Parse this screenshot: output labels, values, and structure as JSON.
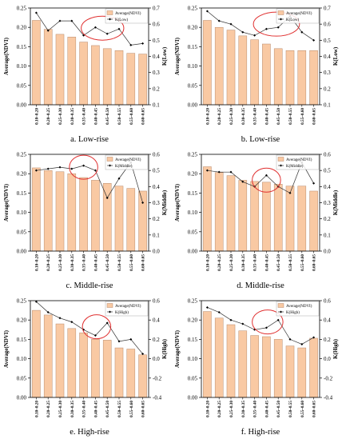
{
  "colors": {
    "bar_fill": "#f9c9a3",
    "bar_stroke": "#b8896a",
    "line": "#333333",
    "ellipse": "#e03030"
  },
  "chart_data": [
    {
      "id": "a",
      "type": "bar",
      "caption": "a. Low-rise",
      "ylabel": "Average(NDVI)",
      "y2label": "K(Low)",
      "categories": [
        "0.10~0.20",
        "0.20~0.25",
        "0.25~0.30",
        "0.30~0.35",
        "0.35~0.40",
        "0.40~0.45",
        "0.45~0.50",
        "0.50~0.55",
        "0.55~0.60",
        "0.60~0.65"
      ],
      "ylim": [
        0,
        0.25
      ],
      "yticks": [
        "0.00",
        "0.05",
        "0.10",
        "0.15",
        "0.20",
        "0.25"
      ],
      "yticks_values": [
        0,
        0.05,
        0.1,
        0.15,
        0.2,
        0.25
      ],
      "y2lim": [
        0.1,
        0.7
      ],
      "y2ticks": [
        "0.1",
        "0.2",
        "0.3",
        "0.4",
        "0.5",
        "0.6",
        "0.7"
      ],
      "y2ticks_values": [
        0.1,
        0.2,
        0.3,
        0.4,
        0.5,
        0.6,
        0.7
      ],
      "legend": [
        "Average(NDVI)",
        "K(Low)"
      ],
      "series": [
        {
          "name": "Average(NDVI)",
          "axis": "left",
          "values": [
            0.218,
            0.195,
            0.182,
            0.175,
            0.162,
            0.153,
            0.145,
            0.14,
            0.133,
            0.131
          ]
        },
        {
          "name": "K(Low)",
          "axis": "right",
          "values": [
            0.67,
            0.56,
            0.62,
            0.62,
            0.53,
            0.58,
            0.54,
            0.57,
            0.47,
            0.48
          ]
        }
      ],
      "highlight": {
        "x_from": 4.3,
        "x_to": 7.9,
        "y2_center": 0.575
      }
    },
    {
      "id": "b",
      "type": "bar",
      "caption": "b. Low-rise",
      "ylabel": "Average(NDVI)",
      "y2label": "K(Low)",
      "categories": [
        "0.10~0.20",
        "0.20~0.25",
        "0.25~0.30",
        "0.30~0.35",
        "0.35~0.40",
        "0.40~0.45",
        "0.45~0.50",
        "0.50~0.55",
        "0.55~0.60",
        "0.60~0.65"
      ],
      "ylim": [
        0,
        0.25
      ],
      "yticks": [
        "0.00",
        "0.05",
        "0.10",
        "0.15",
        "0.20",
        "0.25"
      ],
      "yticks_values": [
        0,
        0.05,
        0.1,
        0.15,
        0.2,
        0.25
      ],
      "y2lim": [
        0.1,
        0.7
      ],
      "y2ticks": [
        "0.1",
        "0.2",
        "0.3",
        "0.4",
        "0.5",
        "0.6",
        "0.7"
      ],
      "y2ticks_values": [
        0.1,
        0.2,
        0.3,
        0.4,
        0.5,
        0.6,
        0.7
      ],
      "legend": [
        "Average(NDVI)",
        "K(Low)"
      ],
      "series": [
        {
          "name": "Average(NDVI)",
          "axis": "left",
          "values": [
            0.218,
            0.2,
            0.193,
            0.178,
            0.168,
            0.157,
            0.145,
            0.14,
            0.14,
            0.14
          ]
        },
        {
          "name": "K(Low)",
          "axis": "right",
          "values": [
            0.68,
            0.62,
            0.6,
            0.55,
            0.53,
            0.57,
            0.58,
            0.65,
            0.55,
            0.5
          ]
        }
      ],
      "highlight": {
        "x_from": 4.4,
        "x_to": 8.3,
        "y2_center": 0.6
      }
    },
    {
      "id": "c",
      "type": "bar",
      "caption": "c. Middle-rise",
      "ylabel": "Average(NDVI)",
      "y2label": "K(Middle)",
      "categories": [
        "0.10~0.20",
        "0.20~0.25",
        "0.25~0.30",
        "0.30~0.35",
        "0.35~0.40",
        "0.40~0.45",
        "0.45~0.50",
        "0.50~0.55",
        "0.55~0.60",
        "0.60~0.65"
      ],
      "ylim": [
        0,
        0.25
      ],
      "yticks": [
        "0.00",
        "0.05",
        "0.10",
        "0.15",
        "0.20",
        "0.25"
      ],
      "yticks_values": [
        0,
        0.05,
        0.1,
        0.15,
        0.2,
        0.25
      ],
      "y2lim": [
        0,
        0.6
      ],
      "y2ticks": [
        "0.0",
        "0.1",
        "0.2",
        "0.3",
        "0.4",
        "0.5",
        "0.6"
      ],
      "y2ticks_values": [
        0,
        0.1,
        0.2,
        0.3,
        0.4,
        0.5,
        0.6
      ],
      "legend": [
        "Average(NDVI)",
        "K(Middle)"
      ],
      "series": [
        {
          "name": "Average(NDVI)",
          "axis": "left",
          "values": [
            0.215,
            0.208,
            0.205,
            0.2,
            0.19,
            0.183,
            0.175,
            0.168,
            0.162,
            0.155
          ]
        },
        {
          "name": "K(Middle)",
          "axis": "right",
          "values": [
            0.5,
            0.51,
            0.52,
            0.51,
            0.53,
            0.5,
            0.33,
            0.45,
            0.55,
            0.3
          ]
        }
      ],
      "highlight": {
        "x_from": 3.3,
        "x_to": 5.7,
        "y2_center": 0.52
      }
    },
    {
      "id": "d",
      "type": "bar",
      "caption": "d. Middle-rise",
      "ylabel": "Average(NDVI)",
      "y2label": "K(Middle)",
      "categories": [
        "0.10~0.20",
        "0.20~0.25",
        "0.25~0.30",
        "0.30~0.35",
        "0.35~0.40",
        "0.40~0.45",
        "0.45~0.50",
        "0.50~0.55",
        "0.55~0.60",
        "0.60~0.65"
      ],
      "ylim": [
        0,
        0.25
      ],
      "yticks": [
        "0.00",
        "0.05",
        "0.10",
        "0.15",
        "0.20",
        "0.25"
      ],
      "yticks_values": [
        0,
        0.05,
        0.1,
        0.15,
        0.2,
        0.25
      ],
      "y2lim": [
        0,
        0.6
      ],
      "y2ticks": [
        "0.0",
        "0.1",
        "0.2",
        "0.3",
        "0.4",
        "0.5",
        "0.6"
      ],
      "y2ticks_values": [
        0,
        0.1,
        0.2,
        0.3,
        0.4,
        0.5,
        0.6
      ],
      "legend": [
        "Average(NDVI)",
        "K(Middle)"
      ],
      "series": [
        {
          "name": "Average(NDVI)",
          "axis": "left",
          "values": [
            0.218,
            0.203,
            0.195,
            0.183,
            0.18,
            0.178,
            0.173,
            0.168,
            0.168,
            0.155
          ]
        },
        {
          "name": "K(Middle)",
          "axis": "right",
          "values": [
            0.5,
            0.49,
            0.49,
            0.43,
            0.4,
            0.47,
            0.4,
            0.36,
            0.55,
            0.42
          ]
        }
      ],
      "highlight": {
        "x_from": 4.3,
        "x_to": 6.7,
        "y2_center": 0.44
      }
    },
    {
      "id": "e",
      "type": "bar",
      "caption": "e. High-rise",
      "ylabel": "Average(NDVI)",
      "y2label": "K(High)",
      "categories": [
        "0.10~0.20",
        "0.20~0.25",
        "0.25~0.30",
        "0.30~0.35",
        "0.35~0.40",
        "0.40~0.45",
        "0.45~0.50",
        "0.50~0.55",
        "0.55~0.60",
        "0.60~0.65"
      ],
      "ylim": [
        0,
        0.25
      ],
      "yticks": [
        "0.00",
        "0.05",
        "0.10",
        "0.15",
        "0.20",
        "0.25"
      ],
      "yticks_values": [
        0,
        0.05,
        0.1,
        0.15,
        0.2,
        0.25
      ],
      "y2lim": [
        -0.4,
        0.6
      ],
      "y2ticks": [
        "-0.4",
        "-0.2",
        "0.0",
        "0.2",
        "0.4",
        "0.6"
      ],
      "y2ticks_values": [
        -0.4,
        -0.2,
        0,
        0.2,
        0.4,
        0.6
      ],
      "legend": [
        "Average(NDVI)",
        "K(High)"
      ],
      "series": [
        {
          "name": "Average(NDVI)",
          "axis": "left",
          "values": [
            0.225,
            0.213,
            0.19,
            0.178,
            0.167,
            0.15,
            0.148,
            0.128,
            0.125,
            0.11
          ]
        },
        {
          "name": "K(High)",
          "axis": "right",
          "values": [
            0.59,
            0.48,
            0.42,
            0.38,
            0.3,
            0.24,
            0.37,
            0.18,
            0.2,
            0.05
          ]
        }
      ],
      "highlight": {
        "x_from": 4.4,
        "x_to": 6.8,
        "y2_center": 0.33
      }
    },
    {
      "id": "f",
      "type": "bar",
      "caption": "f. High-rise",
      "ylabel": "Average(NDVI)",
      "y2label": "K(High)",
      "categories": [
        "0.10~0.20",
        "0.20~0.25",
        "0.25~0.30",
        "0.30~0.35",
        "0.35~0.40",
        "0.40~0.45",
        "0.45~0.50",
        "0.50~0.55",
        "0.55~0.60",
        "0.60~0.65"
      ],
      "ylim": [
        0,
        0.25
      ],
      "yticks": [
        "0.00",
        "0.05",
        "0.10",
        "0.15",
        "0.20",
        "0.25"
      ],
      "yticks_values": [
        0,
        0.05,
        0.1,
        0.15,
        0.2,
        0.25
      ],
      "y2lim": [
        -0.4,
        0.6
      ],
      "y2ticks": [
        "-0.4",
        "-0.2",
        "0.0",
        "0.2",
        "0.4",
        "0.6"
      ],
      "y2ticks_values": [
        -0.4,
        -0.2,
        0,
        0.2,
        0.4,
        0.6
      ],
      "legend": [
        "Average(NDVI)",
        "K(High)"
      ],
      "series": [
        {
          "name": "Average(NDVI)",
          "axis": "left",
          "values": [
            0.222,
            0.205,
            0.188,
            0.172,
            0.16,
            0.157,
            0.15,
            0.133,
            0.128,
            0.153
          ]
        },
        {
          "name": "K(High)",
          "axis": "right",
          "values": [
            0.53,
            0.48,
            0.4,
            0.36,
            0.3,
            0.32,
            0.4,
            0.2,
            0.15,
            0.22
          ]
        }
      ],
      "highlight": {
        "x_from": 4.3,
        "x_to": 6.9,
        "y2_center": 0.38
      }
    }
  ]
}
